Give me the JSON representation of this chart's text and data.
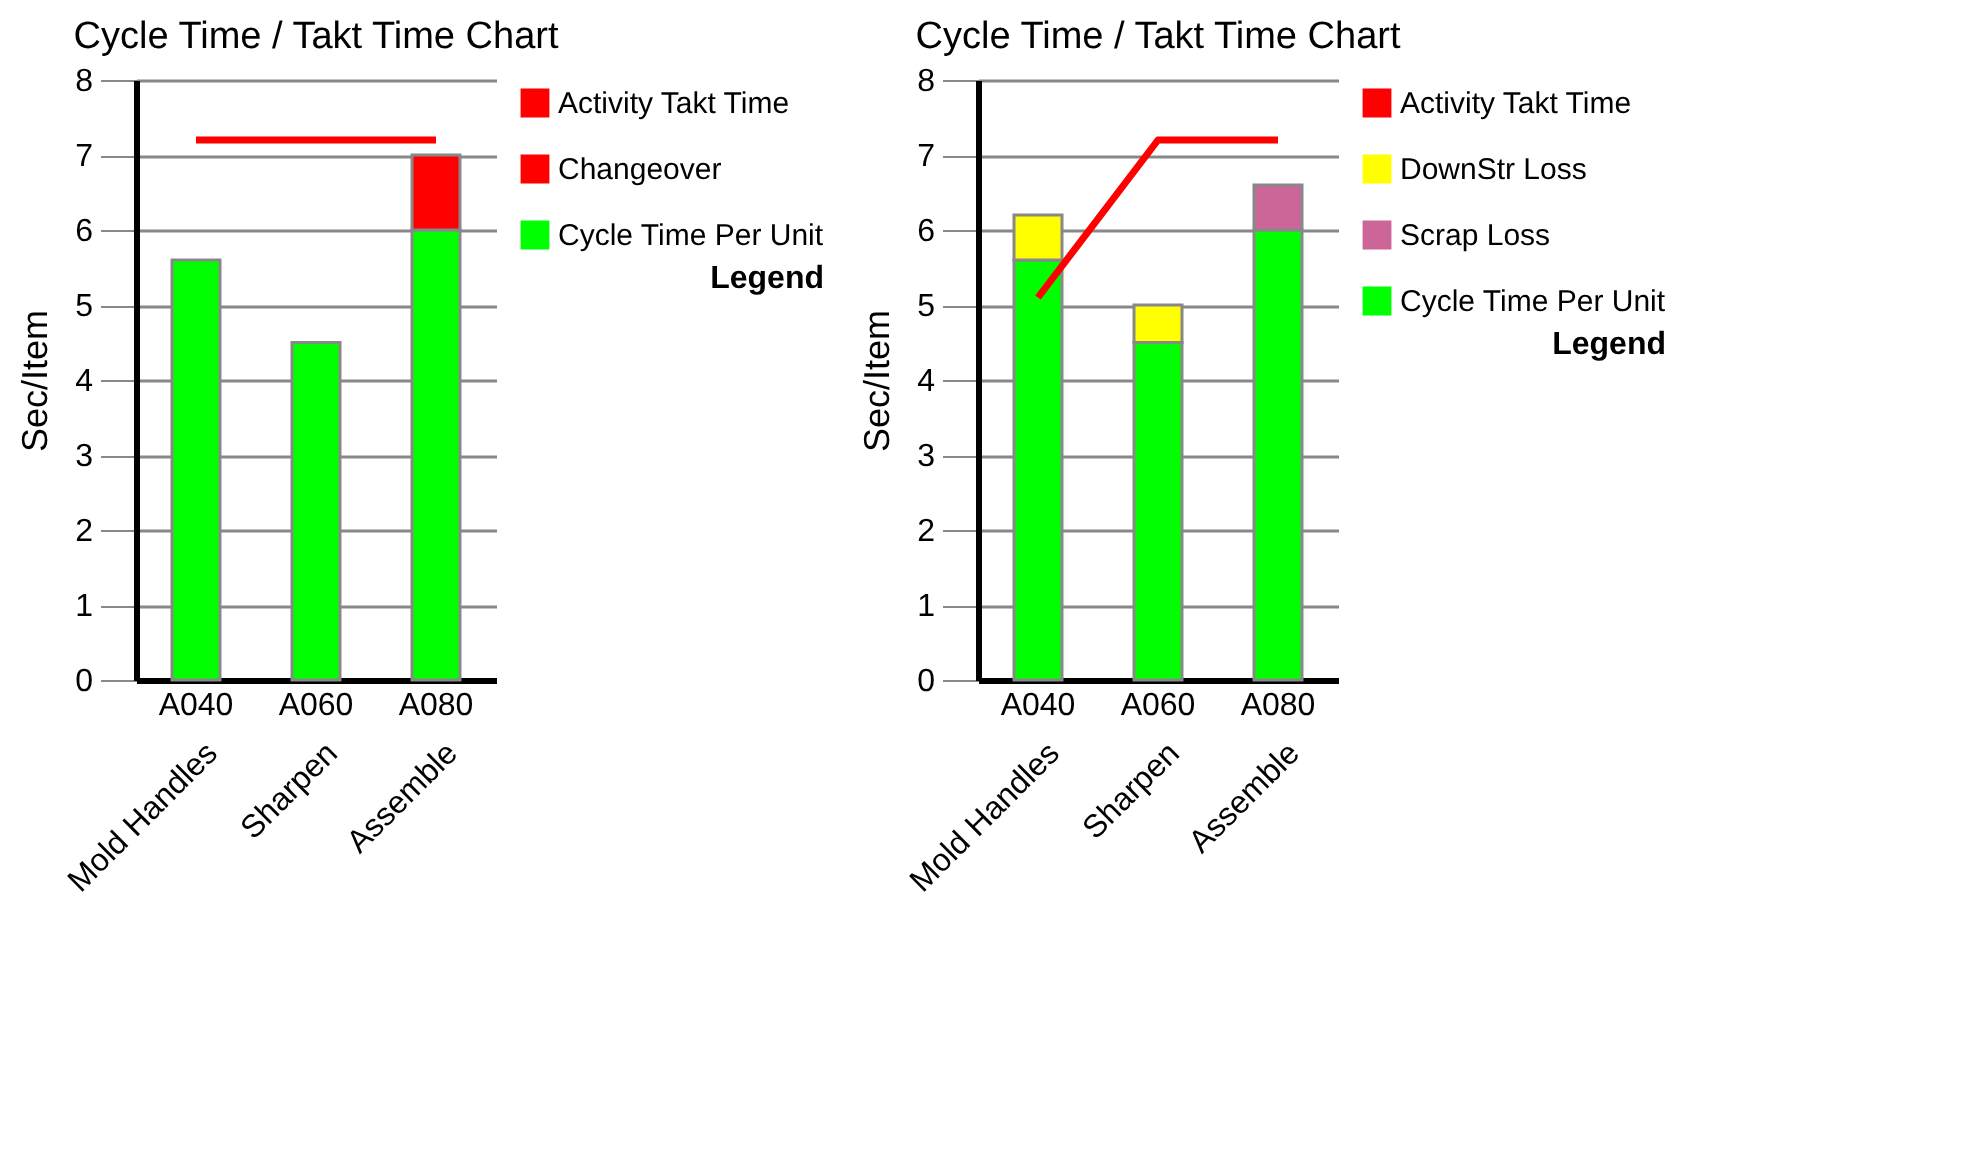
{
  "chart_data": [
    {
      "type": "bar",
      "title": "Cycle Time / Takt Time Chart",
      "ylabel": "Sec/Item",
      "categories": [
        "A040\nMold Handles",
        "A060\nSharpen",
        "A080\nAssemble"
      ],
      "stacked": true,
      "ylim": [
        0,
        8
      ],
      "yticks": [
        0,
        1,
        2,
        3,
        4,
        5,
        6,
        7,
        8
      ],
      "grid": "y",
      "legend": "right",
      "legend_title": "Legend",
      "marker": "none",
      "series": [
        {
          "name": "Cycle Time Per Unit",
          "type": "bar",
          "color": "#00ff00",
          "values": [
            5.6,
            4.5,
            6.0
          ]
        },
        {
          "name": "Changeover",
          "type": "bar",
          "color": "#ff0000",
          "values": [
            null,
            null,
            1.0
          ]
        },
        {
          "name": "Activity Takt Time",
          "type": "line",
          "color": "#ff0000",
          "values": [
            7.2,
            7.2,
            7.2
          ]
        }
      ]
    },
    {
      "type": "bar",
      "title": "Cycle Time / Takt Time Chart",
      "ylabel": "Sec/Item",
      "categories": [
        "A040\nMold Handles",
        "A060\nSharpen",
        "A080\nAssemble"
      ],
      "stacked": true,
      "ylim": [
        0,
        8
      ],
      "yticks": [
        0,
        1,
        2,
        3,
        4,
        5,
        6,
        7,
        8
      ],
      "grid": "y",
      "legend": "right",
      "legend_title": "Legend",
      "marker": "none",
      "series": [
        {
          "name": "Cycle Time Per Unit",
          "type": "bar",
          "color": "#00ff00",
          "values": [
            5.6,
            4.5,
            6.0
          ]
        },
        {
          "name": "Scrap Loss",
          "type": "bar",
          "color": "#cc6699",
          "values": [
            null,
            null,
            0.6
          ]
        },
        {
          "name": "DownStr Loss",
          "type": "bar",
          "color": "#ffff00",
          "values": [
            0.6,
            0.5,
            null
          ]
        },
        {
          "name": "Activity Takt Time",
          "type": "line",
          "color": "#ff0000",
          "values": [
            5.1,
            7.2,
            7.2
          ]
        }
      ]
    }
  ]
}
